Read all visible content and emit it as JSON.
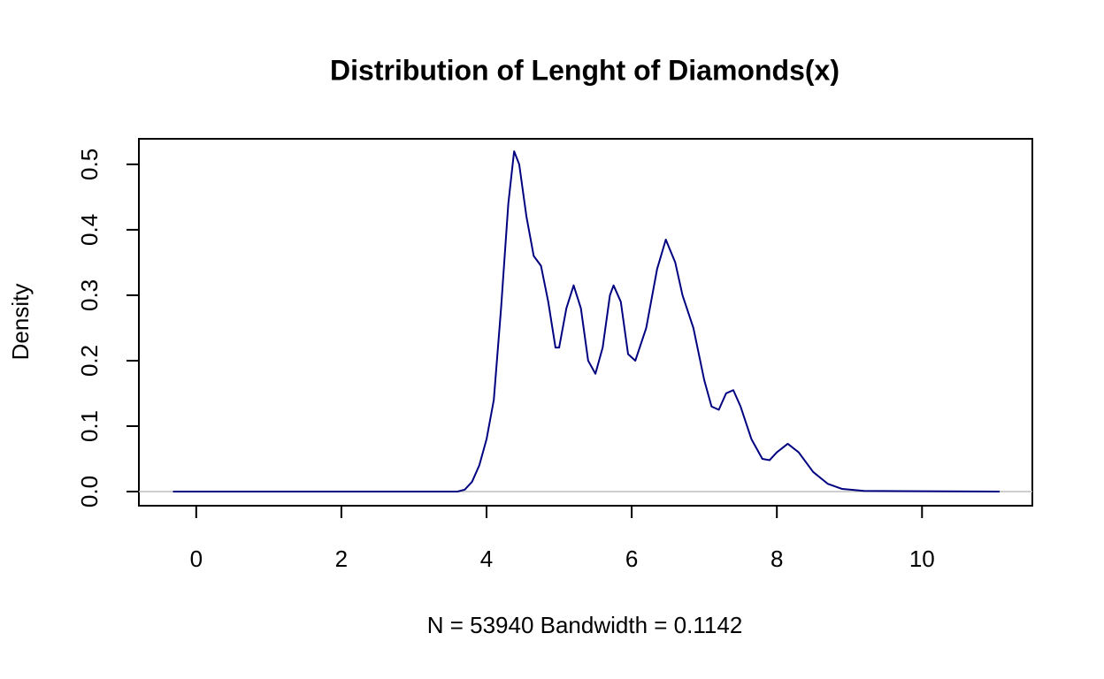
{
  "chart_data": {
    "type": "line",
    "title": "Distribution of Lenght of Diamonds(x)",
    "xlabel": "N = 53940   Bandwidth = 0.1142",
    "ylabel": "Density",
    "x": [
      -0.32,
      3.6,
      3.7,
      3.8,
      3.9,
      4.0,
      4.1,
      4.2,
      4.3,
      4.38,
      4.45,
      4.55,
      4.65,
      4.75,
      4.85,
      4.95,
      5.0,
      5.1,
      5.2,
      5.3,
      5.4,
      5.5,
      5.6,
      5.7,
      5.75,
      5.85,
      5.95,
      6.05,
      6.2,
      6.35,
      6.47,
      6.6,
      6.7,
      6.85,
      7.0,
      7.1,
      7.2,
      7.3,
      7.4,
      7.5,
      7.65,
      7.8,
      7.9,
      8.0,
      8.15,
      8.3,
      8.5,
      8.7,
      8.9,
      9.2,
      11.07
    ],
    "series": [
      {
        "color": "#000080",
        "values": [
          0,
          0,
          0.003,
          0.015,
          0.04,
          0.08,
          0.14,
          0.28,
          0.44,
          0.52,
          0.5,
          0.42,
          0.36,
          0.345,
          0.29,
          0.22,
          0.22,
          0.28,
          0.315,
          0.28,
          0.2,
          0.18,
          0.22,
          0.3,
          0.315,
          0.29,
          0.21,
          0.2,
          0.25,
          0.34,
          0.385,
          0.35,
          0.3,
          0.25,
          0.17,
          0.13,
          0.125,
          0.15,
          0.155,
          0.13,
          0.08,
          0.05,
          0.048,
          0.06,
          0.073,
          0.06,
          0.03,
          0.012,
          0.004,
          0.001,
          0
        ]
      }
    ],
    "xlim": [
      -0.79,
      11.52
    ],
    "ylim": [
      -0.0216,
      0.539
    ],
    "xticks": [
      0,
      2,
      4,
      6,
      8,
      10
    ],
    "yticks": [
      {
        "value": 0,
        "label": "0.0"
      },
      0.1,
      0.2,
      0.3,
      0.4,
      0.5
    ],
    "zero_line": true
  }
}
